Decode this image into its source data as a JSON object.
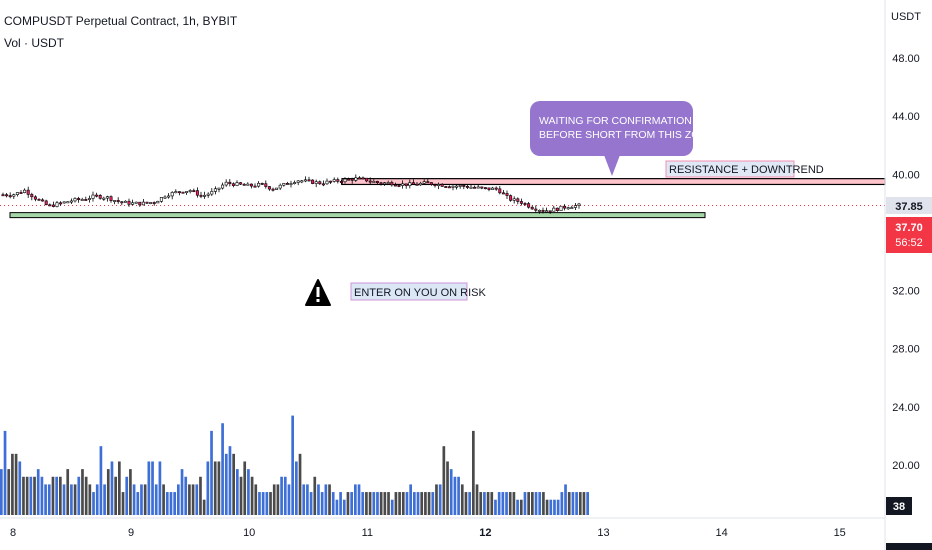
{
  "header": {
    "symbol_line": "COMPUSDT Perpetual Contract, 1h, BYBIT",
    "volume_line": "Vol · USDT"
  },
  "price_axis": {
    "currency": "USDT",
    "ticks": [
      "48.00",
      "44.00",
      "40.00",
      "32.00",
      "28.00",
      "24.00",
      "20.00"
    ],
    "tick_values": [
      48,
      44,
      40,
      32,
      28,
      24,
      20
    ]
  },
  "price_tags": {
    "last_price": "37.85",
    "current_price": "37.70",
    "countdown": "56:52",
    "volume_value": "38"
  },
  "time_axis": {
    "ticks": [
      "8",
      "9",
      "10",
      "11",
      "12",
      "13",
      "14",
      "15"
    ]
  },
  "annotations": {
    "callout_line1": "WAITING FOR CONFIRMATION",
    "callout_line2": "BEFORE SHORT FROM THIS ZONE",
    "resistance_label": "RESISTANCE + DOWNTREND",
    "risk_label": "ENTER ON YOU ON RISK",
    "warning_icon": "warning-triangle-icon"
  },
  "colors": {
    "up": "#ffffff",
    "down": "#e91e63",
    "callout": "#9575cd",
    "volume_up": "#3d6fd6",
    "volume_down": "#4a4a4a",
    "resistance_fill": "#ff8a9a",
    "support_fill": "#a5d6a7",
    "current_tag": "#f23645"
  },
  "chart_data": {
    "type": "candlestick",
    "title": "COMPUSDT Perpetual Contract, 1h, BYBIT",
    "x_axis": [
      "8",
      "9",
      "10",
      "11",
      "12",
      "13",
      "14",
      "15"
    ],
    "ylim": [
      17.5,
      50
    ],
    "resistance_zone": [
      39.3,
      39.7
    ],
    "support_zone": [
      37.1,
      37.5
    ],
    "price_path": [
      [
        8.0,
        38.6
      ],
      [
        8.1,
        38.9
      ],
      [
        8.2,
        38.3
      ],
      [
        8.3,
        37.8
      ],
      [
        8.4,
        38.0
      ],
      [
        8.5,
        38.2
      ],
      [
        8.6,
        38.3
      ],
      [
        8.7,
        38.5
      ],
      [
        8.8,
        38.4
      ],
      [
        8.9,
        38.1
      ],
      [
        9.0,
        38.0
      ],
      [
        9.1,
        38.0
      ],
      [
        9.2,
        38.1
      ],
      [
        9.3,
        38.6
      ],
      [
        9.4,
        38.8
      ],
      [
        9.5,
        38.9
      ],
      [
        9.6,
        38.5
      ],
      [
        9.7,
        38.8
      ],
      [
        9.8,
        39.4
      ],
      [
        9.9,
        39.3
      ],
      [
        10.0,
        39.2
      ],
      [
        10.1,
        39.3
      ],
      [
        10.2,
        39.0
      ],
      [
        10.3,
        39.3
      ],
      [
        10.4,
        39.6
      ],
      [
        10.5,
        39.5
      ],
      [
        10.6,
        39.4
      ],
      [
        10.7,
        39.5
      ],
      [
        10.8,
        39.6
      ],
      [
        10.9,
        39.7
      ],
      [
        11.0,
        39.6
      ],
      [
        11.1,
        39.4
      ],
      [
        11.2,
        39.4
      ],
      [
        11.3,
        39.3
      ],
      [
        11.4,
        39.3
      ],
      [
        11.5,
        39.4
      ],
      [
        11.6,
        39.3
      ],
      [
        11.7,
        39.2
      ],
      [
        11.8,
        39.2
      ],
      [
        11.9,
        39.1
      ],
      [
        12.0,
        39.0
      ],
      [
        12.1,
        39.0
      ],
      [
        12.2,
        38.3
      ],
      [
        12.3,
        38.1
      ],
      [
        12.4,
        37.7
      ],
      [
        12.5,
        37.5
      ],
      [
        12.6,
        37.6
      ],
      [
        12.7,
        37.8
      ],
      [
        12.8,
        37.85
      ]
    ],
    "volume_ylim": [
      0,
      17
    ],
    "volume": [
      6,
      11,
      6,
      8,
      8,
      7,
      5,
      5,
      5,
      5,
      6,
      5,
      4,
      4,
      5,
      5,
      5,
      4,
      6,
      4,
      4,
      5,
      6,
      5,
      4,
      3,
      4,
      9,
      4,
      6,
      7,
      5,
      7,
      3,
      5,
      6,
      4,
      3,
      4,
      4,
      7,
      7,
      4,
      7,
      4,
      3,
      3,
      3,
      4,
      6,
      5,
      4,
      4,
      4,
      5,
      2,
      7,
      11,
      7,
      7,
      12,
      8,
      9,
      8,
      6,
      5,
      7,
      6,
      5,
      4,
      3,
      3,
      3,
      3,
      4,
      4,
      5,
      5,
      4,
      13,
      7,
      8,
      4,
      4,
      3,
      5,
      4,
      3,
      4,
      4,
      3,
      2,
      3,
      2,
      3,
      3,
      4,
      4,
      3,
      3,
      3,
      3,
      3,
      3,
      3,
      3,
      2,
      3,
      3,
      3,
      3,
      4,
      3,
      3,
      3,
      3,
      3,
      3,
      4,
      4,
      9,
      7,
      6,
      5,
      5,
      4,
      3,
      3,
      11,
      4,
      3,
      3,
      3,
      3,
      2,
      3,
      3,
      3,
      3,
      3,
      2,
      2,
      3,
      3,
      3,
      3,
      3,
      3,
      2,
      2,
      2,
      2,
      3,
      4,
      3,
      3,
      3,
      3,
      3,
      3
    ]
  }
}
